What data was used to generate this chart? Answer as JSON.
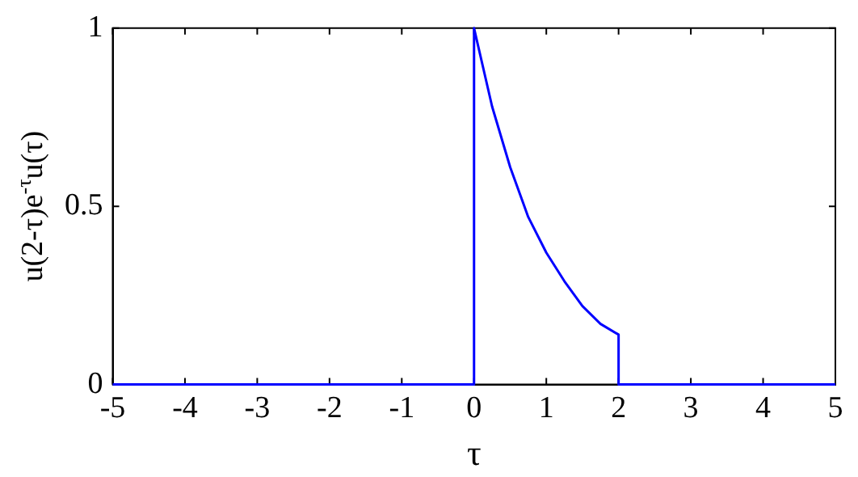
{
  "chart_data": {
    "type": "line",
    "xlabel": "τ",
    "ylabel": "u(2-τ)e$^{-τ}$u(τ)",
    "x": [
      -5,
      0,
      0,
      0.25,
      0.5,
      0.75,
      1,
      1.25,
      1.5,
      1.75,
      2,
      2,
      5
    ],
    "series": [
      {
        "color": "#0000ff",
        "values": [
          0,
          0,
          1,
          0.78,
          0.61,
          0.47,
          0.37,
          0.29,
          0.22,
          0.17,
          0.14,
          0,
          0
        ]
      }
    ],
    "xlim": [
      -5,
      5
    ],
    "xticks": [
      -5,
      -4,
      -3,
      -2,
      -1,
      0,
      1,
      2,
      3,
      4,
      5
    ],
    "ylim": [
      0,
      1
    ],
    "yticks": [
      0,
      0.5,
      1
    ],
    "grid": false,
    "legend": false,
    "marker": "none",
    "line_style": "solid"
  }
}
